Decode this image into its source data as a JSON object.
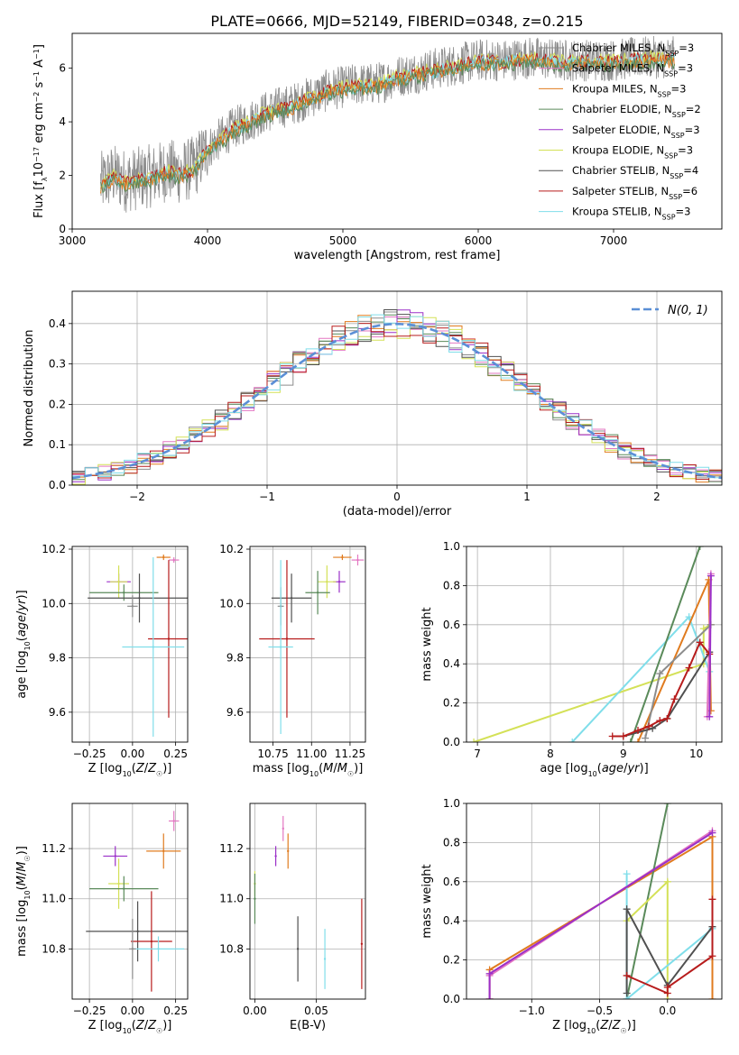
{
  "figure": {
    "title": "PLATE=0666, MJD=52149, FIBERID=0348, z=0.215"
  },
  "colors": {
    "Chabrier MILES": "#8c8c8c",
    "Salpeter MILES": "#e377c2",
    "Kroupa MILES": "#e07b1f",
    "Chabrier ELODIE": "#5a8a5a",
    "Salpeter ELODIE": "#9b30c8",
    "Kroupa ELODIE": "#d4e157",
    "Chabrier STELIB": "#505050",
    "Salpeter STELIB": "#b71c1c",
    "Kroupa STELIB": "#80deea",
    "normal_curve": "#5b8fd6"
  },
  "chart_data": [
    {
      "id": "spectrum",
      "type": "line",
      "xlabel": "wavelength [Angstrom, rest frame]",
      "ylabel": "Flux [f_λ 10^-17 erg cm^-2 s^-1 A^-1]",
      "xlim": [
        3000,
        7800
      ],
      "ylim": [
        0,
        7.3
      ],
      "xticks": [
        3000,
        4000,
        5000,
        6000,
        7000
      ],
      "yticks": [
        0,
        2,
        4,
        6
      ],
      "grid": false,
      "legend_position": "top-right",
      "legend": [
        {
          "imf": "Chabrier MILES",
          "n": "3"
        },
        {
          "imf": "Salpeter MILES",
          "n": "3"
        },
        {
          "imf": "Kroupa MILES",
          "n": "3"
        },
        {
          "imf": "Chabrier ELODIE",
          "n": "2"
        },
        {
          "imf": "Salpeter ELODIE",
          "n": "3"
        },
        {
          "imf": "Kroupa ELODIE",
          "n": "3"
        },
        {
          "imf": "Chabrier STELIB",
          "n": "4"
        },
        {
          "imf": "Salpeter STELIB",
          "n": "6"
        },
        {
          "imf": "Kroupa STELIB",
          "n": "3"
        }
      ],
      "data_start": 3210,
      "data_end": 7450,
      "continuum": [
        [
          3210,
          1.7
        ],
        [
          3300,
          2.0
        ],
        [
          3400,
          1.8
        ],
        [
          3500,
          1.9
        ],
        [
          3600,
          2.0
        ],
        [
          3700,
          2.2
        ],
        [
          3800,
          2.1
        ],
        [
          3900,
          2.3
        ],
        [
          4000,
          3.0
        ],
        [
          4100,
          3.4
        ],
        [
          4200,
          3.8
        ],
        [
          4300,
          4.0
        ],
        [
          4400,
          4.3
        ],
        [
          4500,
          4.5
        ],
        [
          4600,
          4.6
        ],
        [
          4700,
          4.8
        ],
        [
          4800,
          5.0
        ],
        [
          4900,
          5.2
        ],
        [
          5000,
          5.3
        ],
        [
          5100,
          5.4
        ],
        [
          5200,
          5.4
        ],
        [
          5300,
          5.5
        ],
        [
          5400,
          5.7
        ],
        [
          5500,
          5.8
        ],
        [
          5600,
          5.9
        ],
        [
          5700,
          6.0
        ],
        [
          5800,
          6.1
        ],
        [
          5900,
          6.2
        ],
        [
          6000,
          6.3
        ],
        [
          6200,
          6.3
        ],
        [
          6400,
          6.4
        ],
        [
          6600,
          6.3
        ],
        [
          6800,
          6.3
        ],
        [
          7000,
          6.3
        ],
        [
          7200,
          6.4
        ],
        [
          7450,
          6.4
        ]
      ]
    },
    {
      "id": "residuals",
      "type": "bar",
      "xlabel": "(data-model)/error",
      "ylabel": "Normed distribution",
      "xlim": [
        -2.5,
        2.5
      ],
      "ylim": [
        0,
        0.48
      ],
      "xticks": [
        -2,
        -1,
        0,
        1,
        2
      ],
      "yticks": [
        0.0,
        0.1,
        0.2,
        0.3,
        0.4
      ],
      "grid": true,
      "legend_position": "top-right",
      "curve_label": "N(0, 1)",
      "bin_width": 0.1
    },
    {
      "id": "age-vs-z",
      "type": "scatter",
      "xlabel": "Z [log10(Z/Z☉)]",
      "ylabel": "age [log10(age/yr)]",
      "xlim": [
        -0.35,
        0.32
      ],
      "ylim": [
        9.49,
        10.21
      ],
      "xticks": [
        -0.25,
        0.0,
        0.25
      ],
      "yticks": [
        9.6,
        9.8,
        10.0,
        10.2
      ],
      "grid": true,
      "points": [
        {
          "series": "Kroupa MILES",
          "x": 0.18,
          "y": 10.17,
          "xerr": 0.04,
          "yerr": 0.01
        },
        {
          "series": "Salpeter MILES",
          "x": 0.24,
          "y": 10.16,
          "xerr": 0.03,
          "yerr": 0.01
        },
        {
          "series": "Salpeter ELODIE",
          "x": -0.08,
          "y": 10.08,
          "xerr": 0.07,
          "yerr": 0.03
        },
        {
          "series": "Kroupa ELODIE",
          "x": -0.08,
          "y": 10.08,
          "xerr": 0.05,
          "yerr": 0.06
        },
        {
          "series": "Chabrier ELODIE",
          "x": -0.05,
          "y": 10.04,
          "xerr": 0.2,
          "yerr": 0.03
        },
        {
          "series": "Chabrier STELIB",
          "x": 0.04,
          "y": 10.02,
          "xerr": 0.3,
          "yerr": 0.09
        },
        {
          "series": "Chabrier MILES",
          "x": 0.0,
          "y": 9.99,
          "xerr": 0.03,
          "yerr": 0.04
        },
        {
          "series": "Salpeter STELIB",
          "x": 0.21,
          "y": 9.87,
          "xerr": 0.12,
          "yerr": 0.29
        },
        {
          "series": "Kroupa STELIB",
          "x": 0.12,
          "y": 9.84,
          "xerr": 0.18,
          "yerr": 0.33
        }
      ]
    },
    {
      "id": "age-vs-mass",
      "type": "scatter",
      "xlabel": "mass [log10(M/M☉)]",
      "ylabel": "",
      "xlim": [
        10.6,
        11.35
      ],
      "ylim": [
        9.49,
        10.21
      ],
      "xticks": [
        10.75,
        11.0,
        11.25
      ],
      "yticks": [
        9.6,
        9.8,
        10.0,
        10.2
      ],
      "grid": true,
      "points": [
        {
          "series": "Kroupa MILES",
          "x": 11.2,
          "y": 10.17,
          "xerr": 0.06,
          "yerr": 0.01
        },
        {
          "series": "Salpeter MILES",
          "x": 11.3,
          "y": 10.16,
          "xerr": 0.04,
          "yerr": 0.02
        },
        {
          "series": "Salpeter ELODIE",
          "x": 11.18,
          "y": 10.08,
          "xerr": 0.04,
          "yerr": 0.04
        },
        {
          "series": "Kroupa ELODIE",
          "x": 11.1,
          "y": 10.08,
          "xerr": 0.06,
          "yerr": 0.06
        },
        {
          "series": "Chabrier ELODIE",
          "x": 11.04,
          "y": 10.04,
          "xerr": 0.08,
          "yerr": 0.08
        },
        {
          "series": "Chabrier STELIB",
          "x": 10.87,
          "y": 10.02,
          "xerr": 0.13,
          "yerr": 0.09
        },
        {
          "series": "Chabrier MILES",
          "x": 10.8,
          "y": 9.99,
          "xerr": 0.02,
          "yerr": 0.07
        },
        {
          "series": "Salpeter STELIB",
          "x": 10.84,
          "y": 9.87,
          "xerr": 0.18,
          "yerr": 0.29
        },
        {
          "series": "Kroupa STELIB",
          "x": 10.8,
          "y": 9.84,
          "xerr": 0.08,
          "yerr": 0.32
        }
      ]
    },
    {
      "id": "weight-vs-age",
      "type": "line",
      "xlabel": "age [log10(age/yr)]",
      "ylabel": "mass weight",
      "xlim": [
        6.85,
        10.35
      ],
      "ylim": [
        0,
        1.0
      ],
      "xticks": [
        7,
        8,
        9,
        10
      ],
      "yticks": [
        0.0,
        0.2,
        0.4,
        0.6,
        0.8,
        1.0
      ],
      "grid": true,
      "series": [
        {
          "name": "Kroupa ELODIE",
          "points": [
            [
              6.95,
              0.0
            ],
            [
              10.1,
              0.4
            ],
            [
              10.1,
              0.58
            ],
            [
              10.2,
              0.6
            ]
          ]
        },
        {
          "name": "Kroupa STELIB",
          "points": [
            [
              8.3,
              0.0
            ],
            [
              9.9,
              0.64
            ],
            [
              10.18,
              0.36
            ]
          ]
        },
        {
          "name": "Chabrier ELODIE",
          "points": [
            [
              9.1,
              0.0
            ],
            [
              10.05,
              1.0
            ]
          ]
        },
        {
          "name": "Kroupa MILES",
          "points": [
            [
              9.2,
              0.0
            ],
            [
              10.17,
              0.83
            ],
            [
              10.2,
              0.16
            ]
          ]
        },
        {
          "name": "Salpeter MILES",
          "points": [
            [
              10.15,
              0.13
            ],
            [
              10.2,
              0.86
            ]
          ]
        },
        {
          "name": "Chabrier MILES",
          "points": [
            [
              9.3,
              0.02
            ],
            [
              9.5,
              0.35
            ],
            [
              10.2,
              0.6
            ]
          ]
        },
        {
          "name": "Chabrier STELIB",
          "points": [
            [
              9.0,
              0.03
            ],
            [
              9.4,
              0.07
            ],
            [
              9.6,
              0.12
            ],
            [
              10.18,
              0.46
            ]
          ]
        },
        {
          "name": "Salpeter STELIB",
          "points": [
            [
              8.85,
              0.03
            ],
            [
              9.0,
              0.03
            ],
            [
              9.2,
              0.06
            ],
            [
              9.35,
              0.08
            ],
            [
              9.5,
              0.11
            ],
            [
              9.6,
              0.12
            ],
            [
              9.7,
              0.22
            ],
            [
              9.9,
              0.38
            ],
            [
              10.05,
              0.51
            ],
            [
              10.18,
              0.45
            ]
          ]
        },
        {
          "name": "Salpeter ELODIE",
          "points": [
            [
              10.18,
              0.13
            ],
            [
              10.2,
              0.85
            ]
          ]
        }
      ]
    },
    {
      "id": "mass-vs-z",
      "type": "scatter",
      "xlabel": "Z [log10(Z/Z☉)]",
      "ylabel": "mass [log10(M/M☉)]",
      "xlim": [
        -0.35,
        0.32
      ],
      "ylim": [
        10.6,
        11.38
      ],
      "xticks": [
        -0.25,
        0.0,
        0.25
      ],
      "yticks": [
        10.8,
        11.0,
        11.2
      ],
      "grid": true,
      "points": [
        {
          "series": "Salpeter MILES",
          "x": 0.24,
          "y": 11.31,
          "xerr": 0.03,
          "yerr": 0.04
        },
        {
          "series": "Kroupa MILES",
          "x": 0.18,
          "y": 11.19,
          "xerr": 0.1,
          "yerr": 0.07
        },
        {
          "series": "Salpeter ELODIE",
          "x": -0.1,
          "y": 11.17,
          "xerr": 0.07,
          "yerr": 0.04
        },
        {
          "series": "Kroupa ELODIE",
          "x": -0.08,
          "y": 11.06,
          "xerr": 0.06,
          "yerr": 0.1
        },
        {
          "series": "Chabrier ELODIE",
          "x": -0.05,
          "y": 11.04,
          "xerr": 0.2,
          "yerr": 0.05
        },
        {
          "series": "Chabrier STELIB",
          "x": 0.03,
          "y": 10.87,
          "xerr": 0.3,
          "yerr": 0.12
        },
        {
          "series": "Salpeter STELIB",
          "x": 0.11,
          "y": 10.83,
          "xerr": 0.12,
          "yerr": 0.2
        },
        {
          "series": "Kroupa STELIB",
          "x": 0.15,
          "y": 10.8,
          "xerr": 0.15,
          "yerr": 0.05
        },
        {
          "series": "Chabrier MILES",
          "x": 0.0,
          "y": 10.8,
          "xerr": 0.02,
          "yerr": 0.12
        }
      ]
    },
    {
      "id": "mass-vs-ebv",
      "type": "scatter",
      "xlabel": "E(B-V)",
      "ylabel": "",
      "xlim": [
        -0.004,
        0.09
      ],
      "ylim": [
        10.6,
        11.38
      ],
      "xticks": [
        0.0,
        0.05
      ],
      "yticks": [
        10.8,
        11.0,
        11.2
      ],
      "grid": true,
      "points": [
        {
          "series": "Salpeter MILES",
          "x": 0.023,
          "y": 11.28,
          "yerr": 0.05
        },
        {
          "series": "Kroupa MILES",
          "x": 0.027,
          "y": 11.19,
          "yerr": 0.07
        },
        {
          "series": "Salpeter ELODIE",
          "x": 0.017,
          "y": 11.17,
          "yerr": 0.04
        },
        {
          "series": "Kroupa ELODIE",
          "x": 0.0,
          "y": 11.06,
          "yerr": 0.05
        },
        {
          "series": "Chabrier ELODIE",
          "x": 0.0,
          "y": 11.0,
          "yerr": 0.1
        },
        {
          "series": "Chabrier STELIB",
          "x": 0.035,
          "y": 10.8,
          "yerr": 0.13
        },
        {
          "series": "Kroupa STELIB",
          "x": 0.057,
          "y": 10.76,
          "yerr": 0.12
        },
        {
          "series": "Salpeter STELIB",
          "x": 0.087,
          "y": 10.82,
          "yerr": 0.18
        }
      ]
    },
    {
      "id": "weight-vs-z",
      "type": "line",
      "xlabel": "Z [log10(Z/Z☉)]",
      "ylabel": "mass weight",
      "xlim": [
        -1.48,
        0.4
      ],
      "ylim": [
        0,
        1.0
      ],
      "xticks": [
        -1.0,
        -0.5,
        0.0
      ],
      "yticks": [
        0.0,
        0.2,
        0.4,
        0.6,
        0.8,
        1.0
      ],
      "grid": true,
      "series": [
        {
          "name": "Kroupa MILES",
          "points": [
            [
              -1.31,
              0.0
            ],
            [
              -1.31,
              0.15
            ],
            [
              0.33,
              0.83
            ],
            [
              0.33,
              0.0
            ]
          ]
        },
        {
          "name": "Salpeter MILES",
          "points": [
            [
              -1.31,
              0.0
            ],
            [
              -1.31,
              0.12
            ],
            [
              0.33,
              0.86
            ]
          ]
        },
        {
          "name": "Chabrier ELODIE",
          "points": [
            [
              -0.3,
              0.0
            ],
            [
              0.0,
              1.0
            ]
          ]
        },
        {
          "name": "Kroupa ELODIE",
          "points": [
            [
              -0.3,
              0.4
            ],
            [
              0.0,
              0.6
            ],
            [
              0.0,
              0.0
            ]
          ]
        },
        {
          "name": "Kroupa STELIB",
          "points": [
            [
              -0.3,
              0.0
            ],
            [
              -0.3,
              0.64
            ],
            [
              -0.3,
              0.0
            ],
            [
              0.33,
              0.36
            ]
          ]
        },
        {
          "name": "Chabrier STELIB",
          "points": [
            [
              -0.3,
              0.03
            ],
            [
              -0.3,
              0.46
            ],
            [
              0.0,
              0.07
            ],
            [
              0.33,
              0.37
            ]
          ]
        },
        {
          "name": "Salpeter STELIB",
          "points": [
            [
              -0.3,
              0.12
            ],
            [
              0.0,
              0.03
            ],
            [
              0.0,
              0.06
            ],
            [
              0.33,
              0.22
            ],
            [
              0.33,
              0.51
            ]
          ]
        },
        {
          "name": "Salpeter ELODIE",
          "points": [
            [
              -1.31,
              0.0
            ],
            [
              -1.31,
              0.13
            ],
            [
              0.33,
              0.85
            ]
          ]
        }
      ]
    }
  ]
}
